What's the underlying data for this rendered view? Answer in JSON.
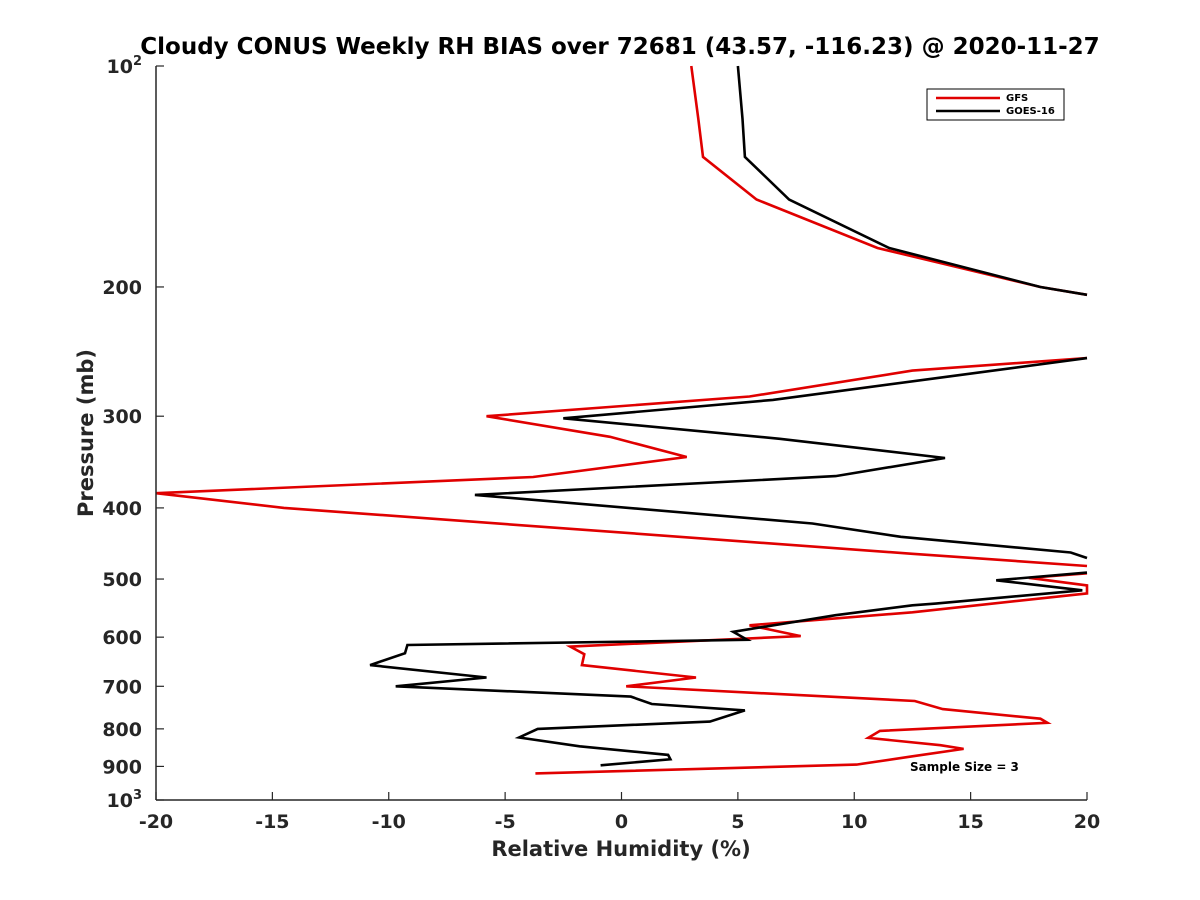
{
  "chart_data": {
    "type": "line",
    "title": "Cloudy CONUS Weekly RH BIAS over 72681 (43.57, -116.23) @ 2020-11-27",
    "xlabel": "Relative Humidity (%)",
    "ylabel": "Pressure (mb)",
    "xlim": [
      -20,
      20
    ],
    "ylim": [
      100,
      1000
    ],
    "y_scale": "log",
    "y_reversed": true,
    "grid": false,
    "legend_position": "top-right",
    "xticks": [
      -20,
      -15,
      -10,
      -5,
      0,
      5,
      10,
      15,
      20
    ],
    "xtick_labels": [
      "-20",
      "-15",
      "-10",
      "-5",
      "0",
      "5",
      "10",
      "15",
      "20"
    ],
    "yticks": [
      {
        "value": 100,
        "base": "10",
        "exp": "2"
      },
      {
        "value": 200,
        "label": "200"
      },
      {
        "value": 300,
        "label": "300"
      },
      {
        "value": 400,
        "label": "400"
      },
      {
        "value": 500,
        "label": "500"
      },
      {
        "value": 600,
        "label": "600"
      },
      {
        "value": 700,
        "label": "700"
      },
      {
        "value": 800,
        "label": "800"
      },
      {
        "value": 900,
        "label": "900"
      },
      {
        "value": 1000,
        "base": "10",
        "exp": "3"
      }
    ],
    "annotation": "Sample Size = 3",
    "series": [
      {
        "name": "GFS",
        "color": "#e00000",
        "points": [
          [
            3.0,
            100
          ],
          [
            3.3,
            118
          ],
          [
            3.5,
            133
          ],
          [
            5.8,
            152
          ],
          [
            11.0,
            177
          ],
          [
            18.0,
            200
          ],
          [
            20.0,
            205
          ],
          [
            null,
            null
          ],
          [
            20.0,
            250
          ],
          [
            12.5,
            260
          ],
          [
            5.5,
            282
          ],
          [
            -5.8,
            300
          ],
          [
            -0.5,
            320
          ],
          [
            2.8,
            341
          ],
          [
            -3.8,
            363
          ],
          [
            -20.0,
            382
          ],
          [
            -14.5,
            400
          ],
          [
            12.5,
            462
          ],
          [
            20.0,
            480
          ],
          [
            null,
            null
          ],
          [
            20.0,
            491
          ],
          [
            17.5,
            498
          ],
          [
            20.0,
            510
          ],
          [
            20.0,
            523
          ],
          [
            12.5,
            555
          ],
          [
            5.5,
            578
          ],
          [
            7.7,
            598
          ],
          [
            -2.2,
            618
          ],
          [
            -1.6,
            633
          ],
          [
            -1.7,
            655
          ],
          [
            3.2,
            681
          ],
          [
            0.2,
            700
          ],
          [
            12.6,
            733
          ],
          [
            13.8,
            752
          ],
          [
            18.0,
            775
          ],
          [
            18.3,
            785
          ],
          [
            11.1,
            805
          ],
          [
            10.6,
            823
          ],
          [
            13.7,
            842
          ],
          [
            14.7,
            852
          ],
          [
            12.5,
            872
          ],
          [
            10.1,
            895
          ],
          [
            -3.7,
            920
          ]
        ]
      },
      {
        "name": "GOES-16",
        "color": "#000000",
        "points": [
          [
            5.0,
            100
          ],
          [
            5.2,
            118
          ],
          [
            5.3,
            133
          ],
          [
            7.2,
            152
          ],
          [
            11.5,
            177
          ],
          [
            18.0,
            200
          ],
          [
            20.0,
            205
          ],
          [
            null,
            null
          ],
          [
            20.0,
            250
          ],
          [
            14.0,
            265
          ],
          [
            6.5,
            285
          ],
          [
            -2.5,
            302
          ],
          [
            6.8,
            322
          ],
          [
            13.9,
            342
          ],
          [
            9.2,
            362
          ],
          [
            -6.3,
            384
          ],
          [
            8.2,
            420
          ],
          [
            12.0,
            438
          ],
          [
            19.3,
            460
          ],
          [
            20.0,
            468
          ],
          [
            null,
            null
          ],
          [
            20.0,
            490
          ],
          [
            16.1,
            502
          ],
          [
            19.8,
            518
          ],
          [
            13.5,
            540
          ],
          [
            12.5,
            543
          ],
          [
            9.2,
            560
          ],
          [
            4.8,
            590
          ],
          [
            5.4,
            605
          ],
          [
            -9.2,
            615
          ],
          [
            -9.3,
            631
          ],
          [
            -10.8,
            655
          ],
          [
            -5.8,
            681
          ],
          [
            -9.7,
            700
          ],
          [
            0.4,
            723
          ],
          [
            1.3,
            740
          ],
          [
            5.3,
            755
          ],
          [
            3.8,
            782
          ],
          [
            -3.6,
            800
          ],
          [
            -4.4,
            822
          ],
          [
            -1.8,
            845
          ],
          [
            2.0,
            868
          ],
          [
            2.1,
            880
          ],
          [
            -0.9,
            897
          ]
        ]
      }
    ]
  }
}
